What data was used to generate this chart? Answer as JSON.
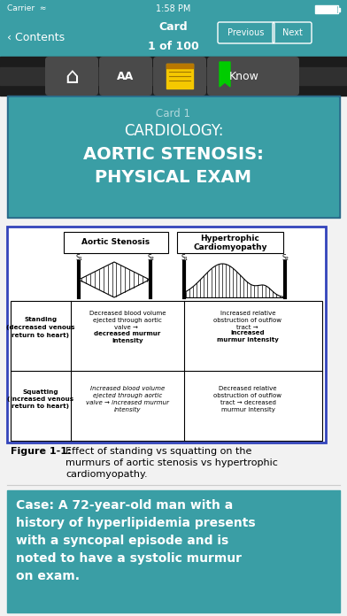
{
  "bg_color": "#3a9ea5",
  "toolbar_bg": "#2a2a2a",
  "white": "#ffffff",
  "status_bar_text": "1:58 PM",
  "carrier_text": "Carrier",
  "card_label": "Card",
  "card_num": "1 of 100",
  "prev_btn": "Previous",
  "next_btn": "Next",
  "know_btn": "Know",
  "card1_label": "Card 1",
  "card1_title1": "CARDIOLOGY:",
  "card1_title2": "AORTIC STENOSIS:",
  "card1_title3": "PHYSICAL EXAM",
  "fig_label": "Figure 1-1:",
  "fig_caption": " Effect of standing vs squatting on the\nmurmurs of aortic stenosis vs hypertrophic\ncardiomyopathy.",
  "case_text": "Case: A 72-year-old man with a\nhistory of hyperlipidemia presents\nwith a syncopal episode and is\nnoted to have a systolic murmur\non exam.",
  "col1_head": "Aortic Stenosis",
  "col2_head1": "Hypertrophic",
  "col2_head2": "Cardiomyopathy",
  "row1_label": "Standing\n(decreased venous\nreturn to heart)",
  "row2_label": "Squatting\n(increased venous\nreturn to heart)",
  "row1_col1_a": "Decreased blood volume\nejected through aortic\nvalve → ",
  "row1_col1_b": "decreased murmur\nintensity",
  "row1_col2_a": "Increased relative\nobstruction of outflow\ntract → ",
  "row1_col2_b": "increased\nmurmur intensity",
  "row2_col1": "Increased blood volume\nejected through aortic\nvalve → increased murmur\nintensity",
  "row2_col2": "Decreased relative\nobstruction of outflow\ntract → decreased\nmurmur intensity",
  "page_bg": "#f2f2f2"
}
